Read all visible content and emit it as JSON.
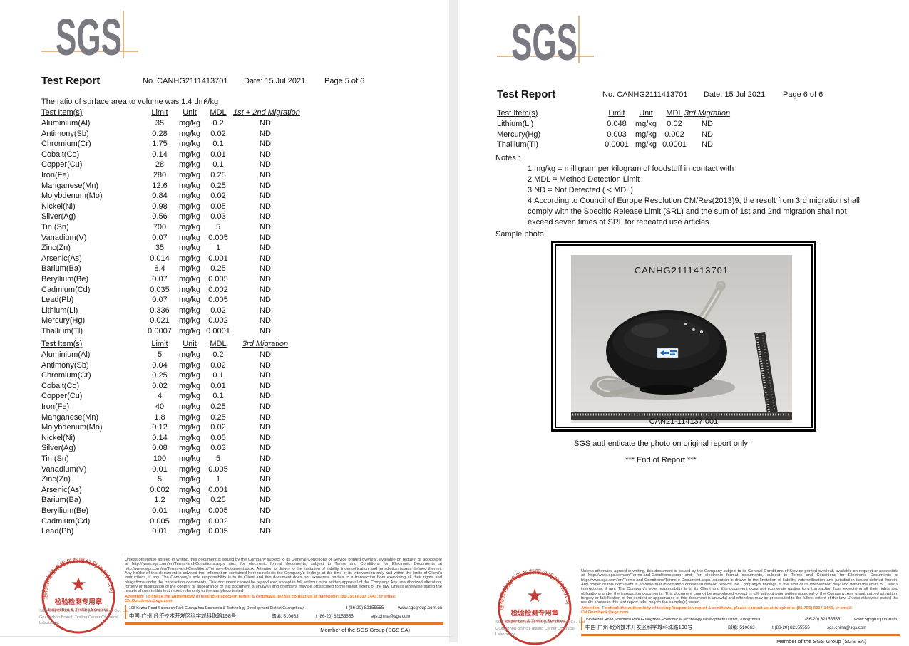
{
  "colors": {
    "accent_orange": "#e8762a",
    "logo_gray": "#7a7880",
    "crosshair_tan": "#d3a05e",
    "stamp_red": "#c43c33"
  },
  "logo": {
    "text": "SGS"
  },
  "page5": {
    "title": "Test Report",
    "report_no": "No. CANHG2111413701",
    "date": "Date: 15 Jul 2021",
    "page_label": "Page 5 of 6",
    "ratio_label": "The ratio of surface area to volume was",
    "ratio_value": ": 1.4 dm²/kg",
    "table1": {
      "headers": [
        "Test Item(s)",
        "Limit",
        "Unit",
        "MDL",
        "1st + 2nd Migration"
      ],
      "rows": [
        [
          "Aluminium(Al)",
          "35",
          "mg/kg",
          "0.2",
          "ND"
        ],
        [
          "Antimony(Sb)",
          "0.28",
          "mg/kg",
          "0.02",
          "ND"
        ],
        [
          "Chromium(Cr)",
          "1.75",
          "mg/kg",
          "0.1",
          "ND"
        ],
        [
          "Cobalt(Co)",
          "0.14",
          "mg/kg",
          "0.01",
          "ND"
        ],
        [
          "Copper(Cu)",
          "28",
          "mg/kg",
          "0.1",
          "ND"
        ],
        [
          "Iron(Fe)",
          "280",
          "mg/kg",
          "0.25",
          "ND"
        ],
        [
          "Manganese(Mn)",
          "12.6",
          "mg/kg",
          "0.25",
          "ND"
        ],
        [
          "Molybdenum(Mo)",
          "0.84",
          "mg/kg",
          "0.02",
          "ND"
        ],
        [
          "Nickel(Ni)",
          "0.98",
          "mg/kg",
          "0.05",
          "ND"
        ],
        [
          "Silver(Ag)",
          "0.56",
          "mg/kg",
          "0.03",
          "ND"
        ],
        [
          "Tin (Sn)",
          "700",
          "mg/kg",
          "5",
          "ND"
        ],
        [
          "Vanadium(V)",
          "0.07",
          "mg/kg",
          "0.005",
          "ND"
        ],
        [
          "Zinc(Zn)",
          "35",
          "mg/kg",
          "1",
          "ND"
        ],
        [
          "Arsenic(As)",
          "0.014",
          "mg/kg",
          "0.001",
          "ND"
        ],
        [
          "Barium(Ba)",
          "8.4",
          "mg/kg",
          "0.25",
          "ND"
        ],
        [
          "Beryllium(Be)",
          "0.07",
          "mg/kg",
          "0.005",
          "ND"
        ],
        [
          "Cadmium(Cd)",
          "0.035",
          "mg/kg",
          "0.002",
          "ND"
        ],
        [
          "Lead(Pb)",
          "0.07",
          "mg/kg",
          "0.005",
          "ND"
        ],
        [
          "Lithium(Li)",
          "0.336",
          "mg/kg",
          "0.02",
          "ND"
        ],
        [
          "Mercury(Hg)",
          "0.021",
          "mg/kg",
          "0.002",
          "ND"
        ],
        [
          "Thallium(Tl)",
          "0.0007",
          "mg/kg",
          "0.0001",
          "ND"
        ]
      ]
    },
    "table2": {
      "headers": [
        "Test Item(s)",
        "Limit",
        "Unit",
        "MDL",
        "3rd Migration"
      ],
      "rows": [
        [
          "Aluminium(Al)",
          "5",
          "mg/kg",
          "0.2",
          "ND"
        ],
        [
          "Antimony(Sb)",
          "0.04",
          "mg/kg",
          "0.02",
          "ND"
        ],
        [
          "Chromium(Cr)",
          "0.25",
          "mg/kg",
          "0.1",
          "ND"
        ],
        [
          "Cobalt(Co)",
          "0.02",
          "mg/kg",
          "0.01",
          "ND"
        ],
        [
          "Copper(Cu)",
          "4",
          "mg/kg",
          "0.1",
          "ND"
        ],
        [
          "Iron(Fe)",
          "40",
          "mg/kg",
          "0.25",
          "ND"
        ],
        [
          "Manganese(Mn)",
          "1.8",
          "mg/kg",
          "0.25",
          "ND"
        ],
        [
          "Molybdenum(Mo)",
          "0.12",
          "mg/kg",
          "0.02",
          "ND"
        ],
        [
          "Nickel(Ni)",
          "0.14",
          "mg/kg",
          "0.05",
          "ND"
        ],
        [
          "Silver(Ag)",
          "0.08",
          "mg/kg",
          "0.03",
          "ND"
        ],
        [
          "Tin (Sn)",
          "100",
          "mg/kg",
          "5",
          "ND"
        ],
        [
          "Vanadium(V)",
          "0.01",
          "mg/kg",
          "0.005",
          "ND"
        ],
        [
          "Zinc(Zn)",
          "5",
          "mg/kg",
          "1",
          "ND"
        ],
        [
          "Arsenic(As)",
          "0.002",
          "mg/kg",
          "0.001",
          "ND"
        ],
        [
          "Barium(Ba)",
          "1.2",
          "mg/kg",
          "0.25",
          "ND"
        ],
        [
          "Beryllium(Be)",
          "0.01",
          "mg/kg",
          "0.005",
          "ND"
        ],
        [
          "Cadmium(Cd)",
          "0.005",
          "mg/kg",
          "0.002",
          "ND"
        ],
        [
          "Lead(Pb)",
          "0.01",
          "mg/kg",
          "0.005",
          "ND"
        ]
      ]
    }
  },
  "page6": {
    "title": "Test Report",
    "report_no": "No. CANHG2111413701",
    "date": "Date: 15 Jul 2021",
    "page_label": "Page 6 of 6",
    "table": {
      "headers": [
        "Test Item(s)",
        "Limit",
        "Unit",
        "MDL",
        "3rd Migration"
      ],
      "rows": [
        [
          "Lithium(Li)",
          "0.048",
          "mg/kg",
          "0.02",
          "ND"
        ],
        [
          "Mercury(Hg)",
          "0.003",
          "mg/kg",
          "0.002",
          "ND"
        ],
        [
          "Thallium(Tl)",
          "0.0001",
          "mg/kg",
          "0.0001",
          "ND"
        ]
      ]
    },
    "notes_label": "Notes :",
    "notes": [
      "1.mg/kg = milligram per kilogram of foodstuff in contact with",
      "2.MDL = Method Detection Limit",
      "3.ND = Not Detected ( < MDL)",
      "4.According to Council of Europe Resolution CM/Res(2013)9, the result from 3rd migration shall comply with the Specific Release Limit (SRL) and the sum of 1st and 2nd migration shall not exceed seven times of SRL for repeated use articles"
    ],
    "sample_photo_label": "Sample photo:",
    "photo": {
      "title": "CANHG2111413701",
      "caption": "CAN21-114137.001",
      "sticker": "Test Part"
    },
    "authenticate_line": "SGS authenticate the photo on original report only",
    "end_line": "*** End of Report ***"
  },
  "footer": {
    "stamp": {
      "arc_text": "通标标准技术服务有限公司广州分公司",
      "line1": "检验检测专用章",
      "line2": "Inspection & Testing Services"
    },
    "company_line1": "SGS-CSTC Standards Technical Services Co., Ltd.",
    "company_line2": "Guangzhou Branch Testing Center Chemical Laboratory.",
    "disclaimer": "Unless otherwise agreed in writing, this document is issued by the Company subject to its General Conditions of Service printed overleaf, available on request or accessible at http://www.sgs.com/en/Terms-and-Conditions.aspx and, for electronic format documents, subject to Terms and Conditions for Electronic Documents at http://www.sgs.com/en/Terms-and-Conditions/Terms-e-Document.aspx. Attention is drawn to the limitation of liability, indemnification and jurisdiction issues defined therein. Any holder of this document is advised that information contained hereon reflects the Company's findings at the time of its intervention only and within the limits of Client's instructions, if any. The Company's sole responsibility is to its Client and this document does not exonerate parties to a transaction from exercising all their rights and obligations under the transaction documents. This document cannot be reproduced except in full, without prior written approval of the Company. Any unauthorized alteration, forgery or falsification of the content or appearance of this document is unlawful and offenders may be prosecuted to the fullest extent of the law. Unless otherwise stated the results shown in this test report refer only to the sample(s) tested .",
    "attention": "Attention: To check the authenticity of testing /inspection report & certificate, please contact us at telephone: (86-755) 8307 1443, or email: CN.Doccheck@sgs.com",
    "address_en": "198 Kezhu Road,Scientech Park Guangzhou Economic & Technology Development District,Guangzhou,China 510663",
    "address_cn": "中国·广州·经济技术开发区科学城科珠路198号",
    "postcode": "邮编: 510663",
    "tel": "t (86-20) 82155555",
    "web": "www.sgsgroup.com.cn",
    "email": "sgs.china@sgs.com",
    "member": "Member of the SGS Group (SGS SA)"
  }
}
